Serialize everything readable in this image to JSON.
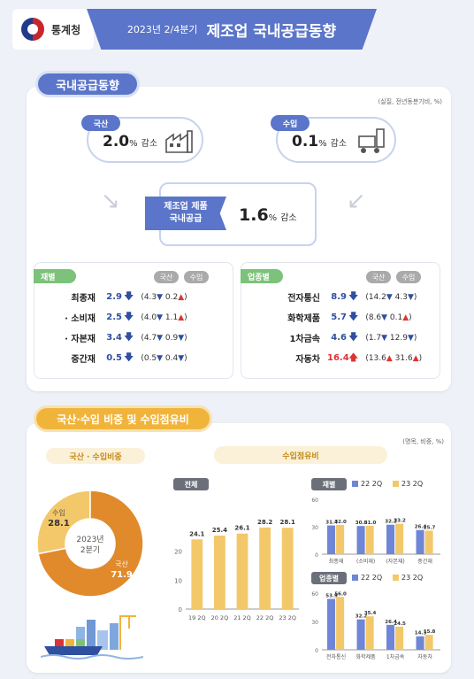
{
  "header": {
    "agency": "통계청",
    "subtitle": "2023년 2/4분기",
    "title": "제조업 국내공급동향"
  },
  "section1": {
    "label": "국내공급동향",
    "unit": "(실질, 전년동분기비, %)",
    "domestic": {
      "tag": "국산",
      "value": "2.0",
      "pct": "%",
      "word": "감소"
    },
    "import": {
      "tag": "수입",
      "value": "0.1",
      "pct": "%",
      "word": "감소"
    },
    "total": {
      "line1": "제조업 제품",
      "line2": "국내공급",
      "value": "1.6",
      "pct": "%",
      "word": "감소"
    },
    "by_material": {
      "tag": "재별",
      "col1": "국산",
      "col2": "수입",
      "rows": [
        {
          "label": "최종재",
          "value": "2.9",
          "dom": "4.3",
          "imp": "0.2",
          "dom_dir": "down",
          "imp_dir": "up",
          "dir": "down"
        },
        {
          "label": "· 소비재",
          "value": "2.5",
          "dom": "4.0",
          "imp": "1.1",
          "dom_dir": "down",
          "imp_dir": "up",
          "dir": "down"
        },
        {
          "label": "· 자본재",
          "value": "3.4",
          "dom": "4.7",
          "imp": "0.9",
          "dom_dir": "down",
          "imp_dir": "down",
          "dir": "down"
        },
        {
          "label": "중간재",
          "value": "0.5",
          "dom": "0.5",
          "imp": "0.4",
          "dom_dir": "down",
          "imp_dir": "down",
          "dir": "down"
        }
      ]
    },
    "by_industry": {
      "tag": "업종별",
      "col1": "국산",
      "col2": "수입",
      "rows": [
        {
          "label": "전자통신",
          "value": "8.9",
          "dom": "14.2",
          "imp": "4.3",
          "dom_dir": "down",
          "imp_dir": "down",
          "dir": "down"
        },
        {
          "label": "화학제품",
          "value": "5.7",
          "dom": "8.6",
          "imp": "0.1",
          "dom_dir": "down",
          "imp_dir": "up",
          "dir": "down"
        },
        {
          "label": "1차금속",
          "value": "4.6",
          "dom": "1.7",
          "imp": "12.9",
          "dom_dir": "down",
          "imp_dir": "down",
          "dir": "down"
        },
        {
          "label": "자동차",
          "value": "16.4",
          "dom": "13.6",
          "imp": "31.6",
          "dom_dir": "up",
          "imp_dir": "up",
          "dir": "up"
        }
      ]
    }
  },
  "section2": {
    "label": "국산·수입 비중 및 수입점유비",
    "unit": "(명목, 비중, %)",
    "pie_pill": "국산 · 수입비중",
    "share_pill": "수입점유비",
    "total_tag": "전체",
    "material_tag": "재별",
    "industry_tag": "업종별",
    "legend_a": "22 2Q",
    "legend_b": "23 2Q",
    "pie_center_1": "2023년",
    "pie_center_2": "2분기"
  },
  "chart_data": [
    {
      "type": "pie",
      "categories": [
        "수입",
        "국산"
      ],
      "values": [
        28.1,
        71.9
      ],
      "colors": [
        "#f3c86a",
        "#e08a2c"
      ]
    },
    {
      "type": "bar",
      "categories": [
        "19 2Q",
        "20 2Q",
        "21 2Q",
        "22 2Q",
        "23 2Q"
      ],
      "values": [
        24.1,
        25.4,
        26.1,
        28.2,
        28.1
      ],
      "ylim": [
        0,
        30
      ],
      "yticks": [
        "0",
        "10",
        "20"
      ],
      "color": "#f3c86a"
    },
    {
      "type": "bar",
      "categories": [
        "최종재",
        "(소비재)",
        "(자본재)",
        "중간재"
      ],
      "series": [
        {
          "name": "22 2Q",
          "values": [
            31.4,
            30.8,
            32.2,
            26.4
          ],
          "color": "#6f86d6"
        },
        {
          "name": "23 2Q",
          "values": [
            32.0,
            31.0,
            33.2,
            25.7
          ],
          "color": "#f3c86a"
        }
      ],
      "ylim": [
        0,
        60
      ],
      "yticks": [
        "0",
        "30",
        "60"
      ]
    },
    {
      "type": "bar",
      "categories": [
        "전자통신",
        "화학제품",
        "1차금속",
        "자동차"
      ],
      "series": [
        {
          "name": "22 2Q",
          "values": [
            53.9,
            32.2,
            26.4,
            14.3
          ],
          "color": "#6f86d6"
        },
        {
          "name": "23 2Q",
          "values": [
            56.0,
            35.4,
            24.5,
            15.8
          ],
          "color": "#f3c86a"
        }
      ],
      "ylim": [
        0,
        60
      ],
      "yticks": [
        "0",
        "30",
        "60"
      ]
    }
  ]
}
